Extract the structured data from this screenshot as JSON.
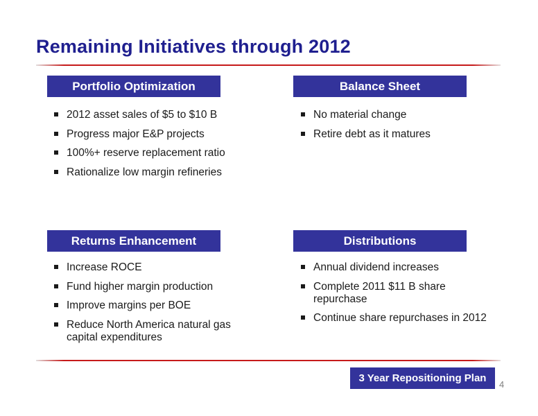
{
  "title": "Remaining Initiatives through 2012",
  "sections": {
    "portfolio": {
      "heading": "Portfolio Optimization",
      "items": [
        "2012 asset sales of $5 to $10 B",
        "Progress major E&P projects",
        "100%+ reserve replacement ratio",
        "Rationalize low margin refineries"
      ]
    },
    "balance": {
      "heading": "Balance Sheet",
      "items": [
        "No material change",
        "Retire debt as it matures"
      ]
    },
    "returns": {
      "heading": "Returns Enhancement",
      "items": [
        "Increase ROCE",
        "Fund higher margin production",
        "Improve margins per BOE",
        "Reduce North America natural gas capital expenditures"
      ]
    },
    "distributions": {
      "heading": "Distributions",
      "items": [
        "Annual dividend increases",
        "Complete 2011 $11 B share repurchase",
        "Continue share repurchases in 2012"
      ]
    }
  },
  "footer": {
    "plan_label": "3 Year Repositioning Plan",
    "page_number": "4"
  },
  "colors": {
    "title": "#1f1f8f",
    "header_bg": "#33339b",
    "rule": "#c61a1a"
  }
}
